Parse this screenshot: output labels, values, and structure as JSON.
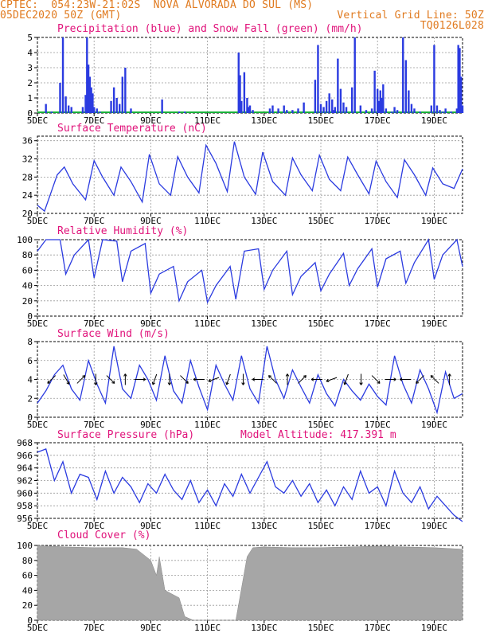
{
  "header": {
    "line1_left": "CPTEC:  054:23W-21:02S  NOVA ALVORADA DO SUL (MS)",
    "line2_left": "05DEC2020 50Z (GMT)",
    "line2_right": "Vertical Grid Line: 50Z",
    "line3_right": "TQ0126L028"
  },
  "colors": {
    "header": "#e07a1f",
    "title": "#e0127a",
    "line": "#2b3be0",
    "snow": "#19b23a",
    "cloud": "#a6a6a6"
  },
  "x_axis": {
    "labels": [
      "5DEC",
      "7DEC",
      "9DEC",
      "11DEC",
      "13DEC",
      "15DEC",
      "17DEC",
      "19DEC"
    ],
    "range_days": [
      0,
      15
    ]
  },
  "panels": {
    "precip": {
      "title": "Precipitation (blue) and Snow Fall (green) (mm/h)",
      "yticks": [
        "0",
        "1",
        "2",
        "3",
        "4",
        "5"
      ]
    },
    "temp": {
      "title": "Surface Temperature (nC)",
      "yticks": [
        "20",
        "24",
        "28",
        "32",
        "36"
      ]
    },
    "humidity": {
      "title": "Relative Humidity (%)",
      "yticks": [
        "0",
        "20",
        "40",
        "60",
        "80",
        "100"
      ]
    },
    "wind": {
      "title": "Surface Wind (m/s)",
      "yticks": [
        "0",
        "2",
        "4",
        "6",
        "8"
      ]
    },
    "pressure": {
      "title": "Surface Pressure (hPa)",
      "altitude": "Model Altitude: 417.391 m",
      "yticks": [
        "956",
        "958",
        "960",
        "962",
        "964",
        "966",
        "968"
      ]
    },
    "cloud": {
      "title": "Cloud Cover (%)",
      "yticks": [
        "0",
        "20",
        "40",
        "60",
        "80",
        "100"
      ]
    }
  },
  "chart_data": [
    {
      "type": "bar",
      "title": "Precipitation (blue) and Snow Fall (green) (mm/h)",
      "ylim": [
        0,
        5
      ],
      "x_unit": "days since 5DEC",
      "series": [
        {
          "name": "Precipitation",
          "x": [
            0.3,
            0.5,
            0.8,
            0.9,
            1.0,
            1.1,
            1.2,
            1.6,
            1.7,
            1.75,
            1.8,
            1.85,
            1.9,
            1.95,
            2.0,
            2.1,
            2.2,
            2.6,
            2.7,
            2.8,
            2.9,
            3.0,
            3.1,
            3.3,
            4.4,
            5.0,
            5.2,
            7.1,
            7.15,
            7.2,
            7.3,
            7.4,
            7.45,
            7.5,
            7.6,
            8.2,
            8.3,
            8.5,
            8.7,
            8.8,
            9.0,
            9.2,
            9.4,
            9.8,
            9.9,
            10.0,
            10.1,
            10.2,
            10.3,
            10.4,
            10.45,
            10.5,
            10.6,
            10.7,
            10.8,
            10.9,
            11.1,
            11.2,
            11.4,
            11.6,
            11.8,
            11.9,
            12.0,
            12.05,
            12.1,
            12.15,
            12.2,
            12.3,
            12.5,
            12.6,
            12.7,
            12.9,
            13.0,
            13.1,
            13.2,
            13.3,
            13.5,
            13.9,
            14.0,
            14.1,
            14.2,
            14.3,
            14.4,
            14.6,
            14.8,
            14.85,
            14.9,
            14.95,
            15.0
          ],
          "values": [
            0.6,
            0.1,
            2.0,
            5.0,
            1.1,
            0.5,
            0.4,
            0.4,
            1.2,
            5.0,
            3.2,
            2.4,
            1.7,
            1.3,
            0.4,
            0.3,
            0.1,
            0.8,
            1.7,
            1.0,
            0.6,
            2.4,
            3.0,
            0.3,
            0.9,
            0.1,
            0.1,
            4.0,
            2.5,
            0.8,
            2.7,
            1.0,
            0.4,
            0.5,
            0.2,
            0.3,
            0.5,
            0.3,
            0.5,
            0.2,
            0.2,
            0.3,
            0.7,
            2.2,
            4.5,
            0.6,
            0.4,
            0.8,
            1.3,
            0.9,
            0.2,
            0.4,
            3.6,
            1.6,
            0.7,
            0.4,
            1.7,
            5.0,
            0.5,
            0.2,
            0.3,
            2.8,
            1.6,
            0.8,
            1.5,
            1.0,
            1.9,
            0.3,
            0.1,
            0.4,
            0.2,
            5.0,
            3.5,
            1.5,
            0.6,
            0.3,
            0.1,
            0.5,
            4.5,
            0.5,
            0.2,
            0.1,
            0.3,
            0.1,
            0.3,
            4.5,
            4.3,
            2.4,
            0.5
          ]
        }
      ]
    },
    {
      "type": "line",
      "title": "Surface Temperature (nC)",
      "ylim": [
        20,
        37
      ],
      "series": [
        {
          "name": "Temperature",
          "x": [
            0,
            0.25,
            0.7,
            0.95,
            1.25,
            1.7,
            2.0,
            2.3,
            2.7,
            2.95,
            3.3,
            3.7,
            3.95,
            4.3,
            4.7,
            4.95,
            5.3,
            5.7,
            5.95,
            6.3,
            6.7,
            6.95,
            7.3,
            7.7,
            7.95,
            8.3,
            8.75,
            9.0,
            9.3,
            9.7,
            9.95,
            10.3,
            10.7,
            10.95,
            11.3,
            11.7,
            11.95,
            12.3,
            12.7,
            12.95,
            13.3,
            13.7,
            13.95,
            14.3,
            14.7,
            15.0
          ],
          "values": [
            21.8,
            20.5,
            28.5,
            30.2,
            26.5,
            23.0,
            31.6,
            28.0,
            24.0,
            30.2,
            27.0,
            22.5,
            33.0,
            26.5,
            24.0,
            32.5,
            28.0,
            24.5,
            35.0,
            31.0,
            24.8,
            35.8,
            28.0,
            24.2,
            33.5,
            27.0,
            24.0,
            32.2,
            28.5,
            25.0,
            32.8,
            27.5,
            25.0,
            32.4,
            28.5,
            24.3,
            31.5,
            27.0,
            23.5,
            31.8,
            28.5,
            24.0,
            30.0,
            26.5,
            25.5,
            29.8
          ]
        }
      ]
    },
    {
      "type": "line",
      "title": "Relative Humidity (%)",
      "ylim": [
        0,
        100
      ],
      "series": [
        {
          "name": "Relative Humidity",
          "x": [
            0,
            0.3,
            0.8,
            1.0,
            1.3,
            1.8,
            2.0,
            2.3,
            2.8,
            3.0,
            3.3,
            3.8,
            4.0,
            4.3,
            4.8,
            5.0,
            5.3,
            5.8,
            6.0,
            6.3,
            6.8,
            7.0,
            7.3,
            7.8,
            8.0,
            8.3,
            8.8,
            9.0,
            9.3,
            9.8,
            10.0,
            10.3,
            10.8,
            11.0,
            11.3,
            11.8,
            12.0,
            12.3,
            12.8,
            13.0,
            13.3,
            13.8,
            14.0,
            14.3,
            14.8,
            15.0
          ],
          "values": [
            85,
            100,
            100,
            55,
            80,
            100,
            50,
            100,
            98,
            45,
            85,
            95,
            30,
            55,
            65,
            20,
            45,
            60,
            18,
            40,
            65,
            22,
            85,
            88,
            35,
            60,
            85,
            28,
            52,
            70,
            33,
            55,
            82,
            40,
            62,
            88,
            38,
            75,
            85,
            43,
            70,
            100,
            48,
            80,
            100,
            65
          ]
        }
      ]
    },
    {
      "type": "line",
      "title": "Surface Wind (m/s)",
      "ylim": [
        0,
        8
      ],
      "series": [
        {
          "name": "Wind speed",
          "x": [
            0,
            0.3,
            0.6,
            0.9,
            1.2,
            1.5,
            1.8,
            2.1,
            2.4,
            2.7,
            3.0,
            3.3,
            3.6,
            3.9,
            4.2,
            4.5,
            4.8,
            5.1,
            5.4,
            5.7,
            6.0,
            6.3,
            6.6,
            6.9,
            7.2,
            7.5,
            7.8,
            8.1,
            8.4,
            8.7,
            9.0,
            9.3,
            9.6,
            9.9,
            10.2,
            10.5,
            10.8,
            11.1,
            11.4,
            11.7,
            12.0,
            12.3,
            12.6,
            12.9,
            13.2,
            13.5,
            13.8,
            14.1,
            14.4,
            14.7,
            15.0
          ],
          "values": [
            1.5,
            2.8,
            4.5,
            5.5,
            3.0,
            1.8,
            6.0,
            3.5,
            1.5,
            7.5,
            3.0,
            2.0,
            5.5,
            4.0,
            1.8,
            6.5,
            2.8,
            1.5,
            6.0,
            3.2,
            0.8,
            5.5,
            3.5,
            1.8,
            6.5,
            3.0,
            1.5,
            7.5,
            4.0,
            2.0,
            5.0,
            3.2,
            1.5,
            4.5,
            2.5,
            1.2,
            4.0,
            2.8,
            1.8,
            3.5,
            2.2,
            1.3,
            6.5,
            3.5,
            1.5,
            5.0,
            3.0,
            0.5,
            4.8,
            2.0,
            2.5
          ]
        }
      ]
    },
    {
      "type": "line",
      "title": "Surface Pressure (hPa)",
      "ylim": [
        956,
        968
      ],
      "series": [
        {
          "name": "Surface Pressure",
          "x": [
            0,
            0.3,
            0.6,
            0.9,
            1.2,
            1.5,
            1.8,
            2.1,
            2.4,
            2.7,
            3.0,
            3.3,
            3.6,
            3.9,
            4.2,
            4.5,
            4.8,
            5.1,
            5.4,
            5.7,
            6.0,
            6.3,
            6.6,
            6.9,
            7.2,
            7.5,
            7.8,
            8.1,
            8.4,
            8.7,
            9.0,
            9.3,
            9.6,
            9.9,
            10.2,
            10.5,
            10.8,
            11.1,
            11.4,
            11.7,
            12.0,
            12.3,
            12.6,
            12.9,
            13.2,
            13.5,
            13.8,
            14.1,
            14.4,
            14.7,
            15.0
          ],
          "values": [
            966.5,
            967.0,
            962.0,
            965.0,
            960.0,
            963.0,
            962.5,
            959.0,
            963.5,
            960.0,
            962.5,
            961.0,
            958.5,
            961.5,
            960.0,
            963.0,
            960.5,
            959.0,
            962.0,
            958.5,
            960.5,
            958.0,
            961.5,
            959.5,
            963.0,
            960.0,
            962.5,
            965.0,
            961.0,
            960.0,
            962.0,
            959.5,
            961.5,
            958.5,
            960.5,
            958.0,
            961.0,
            959.0,
            963.5,
            960.0,
            961.0,
            958.0,
            963.5,
            960.0,
            958.5,
            961.0,
            957.5,
            959.5,
            958.0,
            956.5,
            955.5
          ]
        }
      ]
    },
    {
      "type": "area",
      "title": "Cloud Cover (%)",
      "ylim": [
        0,
        100
      ],
      "series": [
        {
          "name": "Cloud Cover",
          "x": [
            0,
            1,
            2,
            3,
            3.5,
            4.0,
            4.2,
            4.3,
            4.5,
            5.0,
            5.2,
            5.5,
            5.8,
            6.0,
            6.5,
            7.0,
            7.4,
            7.6,
            8.0,
            9.0,
            10.0,
            11.0,
            12.0,
            13.0,
            14.0,
            15.0
          ],
          "values": [
            100,
            98,
            97,
            97,
            95,
            80,
            60,
            85,
            40,
            30,
            5,
            0,
            0,
            0,
            0,
            0,
            85,
            97,
            98,
            97,
            97,
            98,
            99,
            98,
            97,
            95
          ]
        }
      ]
    }
  ]
}
